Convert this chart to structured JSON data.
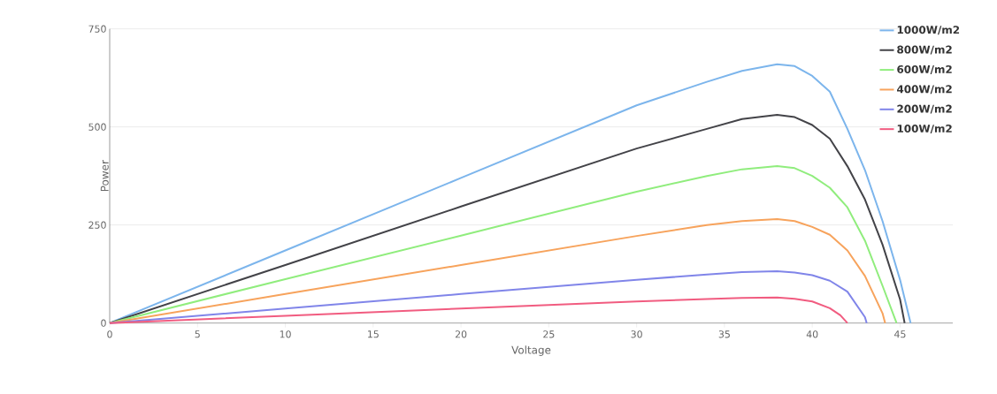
{
  "chart_data": {
    "type": "line",
    "xlabel": "Voltage",
    "ylabel": "Power",
    "xlim": [
      0,
      48
    ],
    "xticks": [
      0,
      5,
      10,
      15,
      20,
      25,
      30,
      35,
      40,
      45
    ],
    "ylim": [
      0,
      750
    ],
    "yticks": [
      0,
      250,
      500,
      750
    ],
    "grid": "y",
    "legend": "top right",
    "marker": "none",
    "line_style": "solid",
    "series": [
      {
        "name": "1000W/m2",
        "color": "#7cb5ec",
        "x": [
          0,
          10,
          20,
          30,
          34,
          36,
          38,
          39,
          40,
          41,
          42,
          43,
          44,
          45,
          45.6
        ],
        "values": [
          0,
          185,
          370,
          555,
          615,
          643,
          660,
          655,
          630,
          590,
          495,
          390,
          260,
          110,
          0
        ]
      },
      {
        "name": "800W/m2",
        "color": "#434348",
        "x": [
          0,
          10,
          20,
          30,
          34,
          36,
          38,
          39,
          40,
          41,
          42,
          43,
          44,
          45,
          45.26
        ],
        "values": [
          0,
          148,
          297,
          445,
          495,
          520,
          531,
          525,
          505,
          470,
          400,
          315,
          200,
          60,
          0
        ]
      },
      {
        "name": "600W/m2",
        "color": "#90ed7d",
        "x": [
          0,
          10,
          20,
          30,
          34,
          36,
          38,
          39,
          40,
          41,
          42,
          43,
          44,
          44.8
        ],
        "values": [
          0,
          112,
          223,
          335,
          375,
          392,
          400,
          395,
          375,
          345,
          295,
          210,
          95,
          0
        ]
      },
      {
        "name": "400W/m2",
        "color": "#f7a35c",
        "x": [
          0,
          10,
          20,
          30,
          34,
          36,
          38,
          39,
          40,
          41,
          42,
          43,
          44,
          44.15
        ],
        "values": [
          0,
          74,
          148,
          222,
          250,
          260,
          265,
          260,
          245,
          225,
          185,
          120,
          25,
          0
        ]
      },
      {
        "name": "200W/m2",
        "color": "#8085e9",
        "x": [
          0,
          10,
          20,
          30,
          34,
          36,
          38,
          39,
          40,
          41,
          42,
          43,
          43.1
        ],
        "values": [
          0,
          37,
          74,
          110,
          124,
          130,
          132,
          129,
          122,
          108,
          80,
          15,
          0
        ]
      },
      {
        "name": "100W/m2",
        "color": "#f15c80",
        "x": [
          0,
          10,
          20,
          30,
          34,
          36,
          38,
          39,
          40,
          41,
          41.6,
          42
        ],
        "values": [
          0,
          18.5,
          37,
          55,
          61,
          64,
          65,
          62,
          55,
          38,
          20,
          0
        ]
      }
    ]
  }
}
